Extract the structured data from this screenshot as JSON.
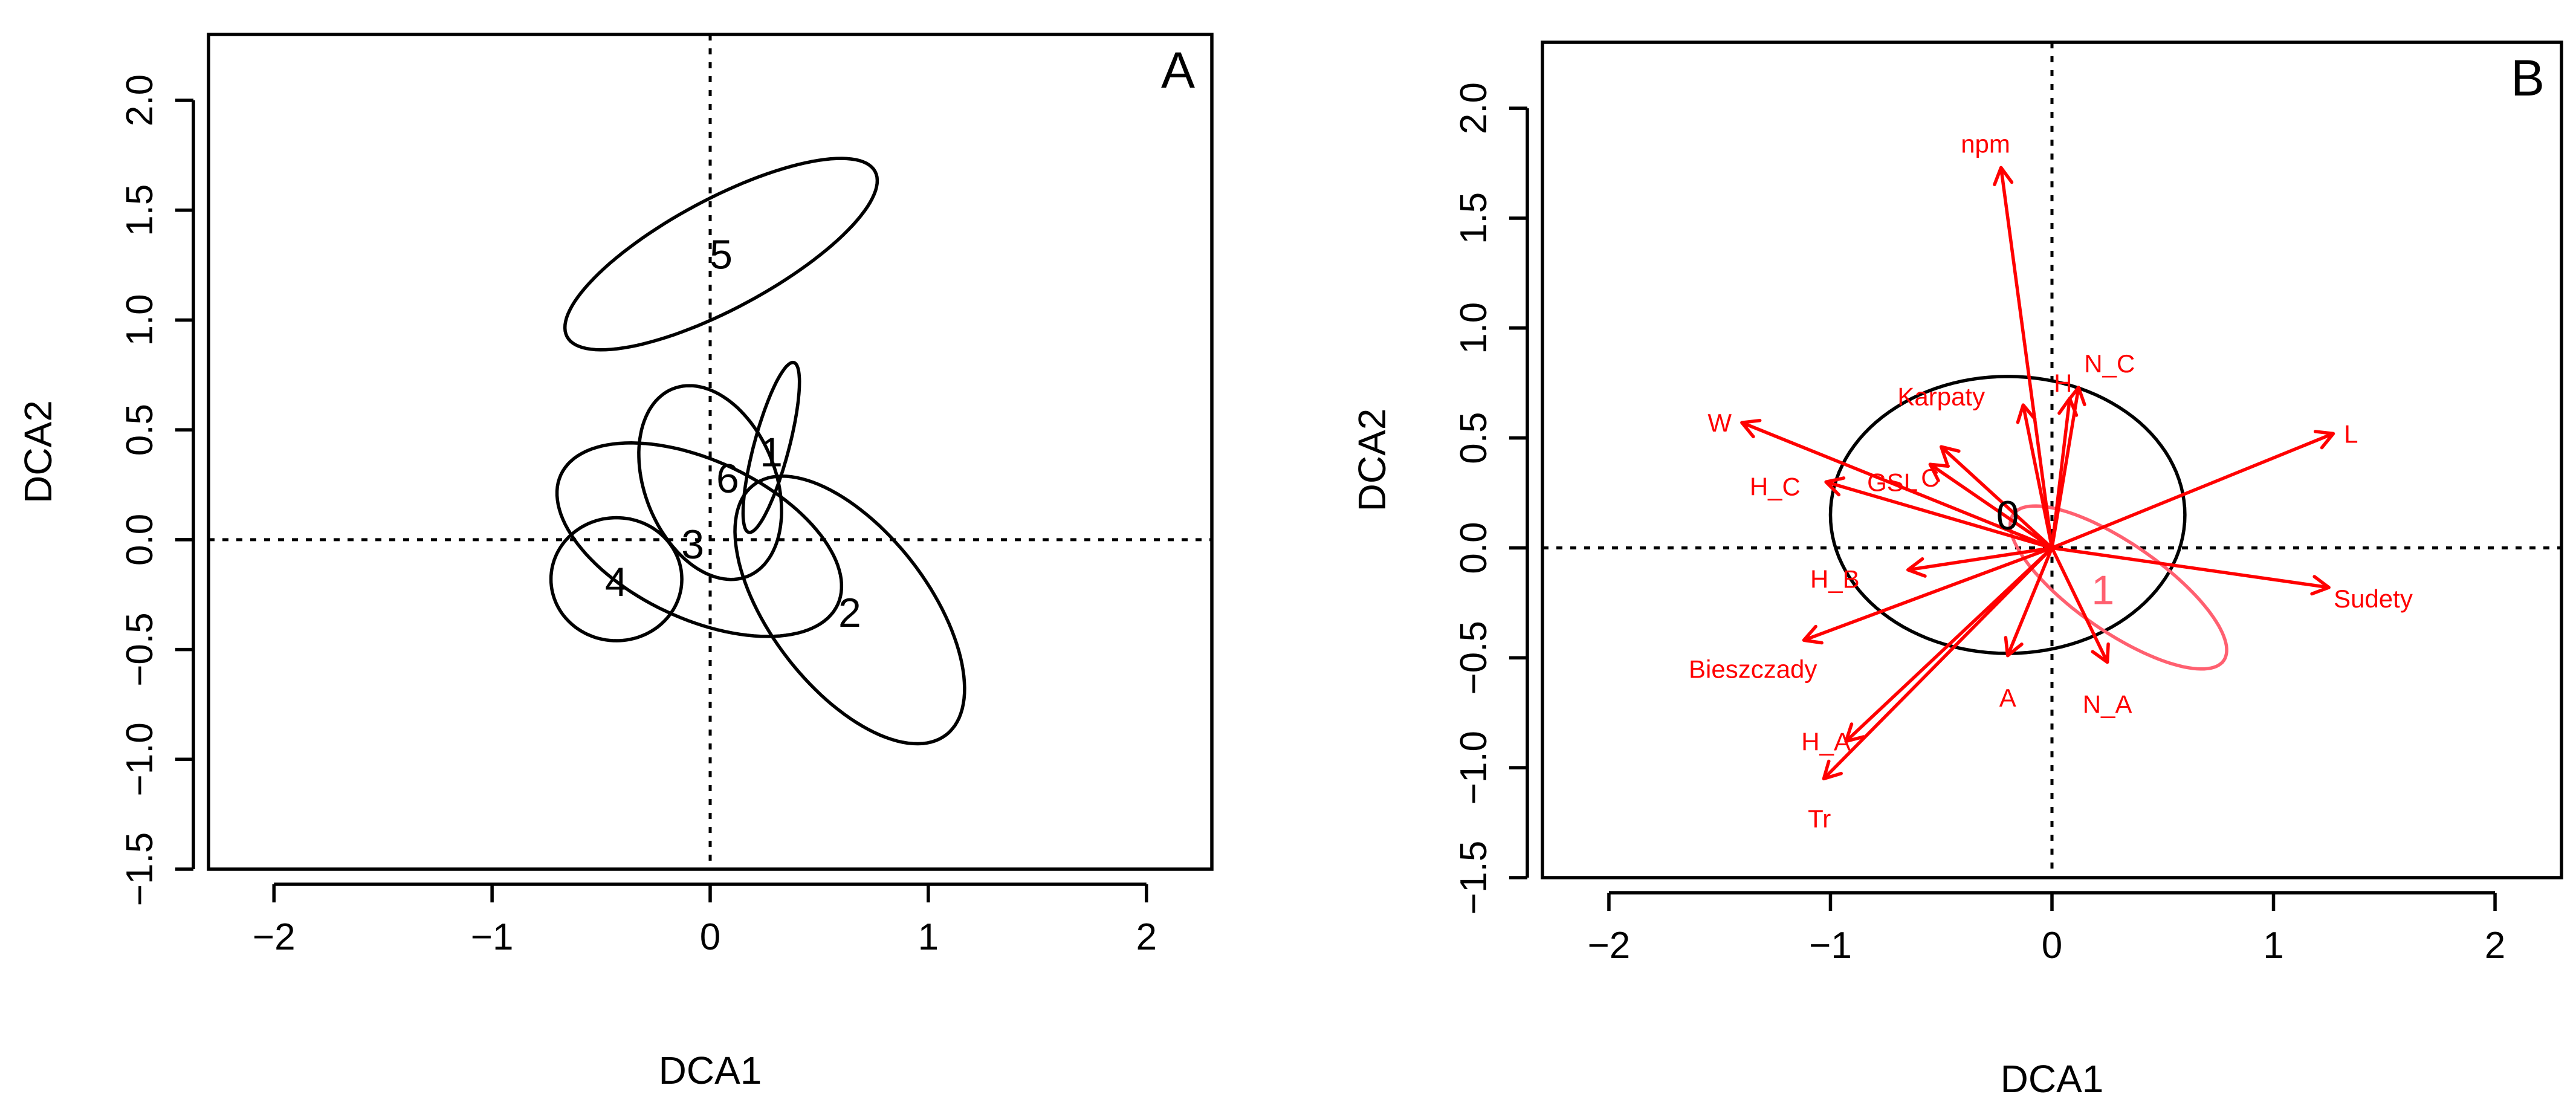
{
  "colors": {
    "axis": "#000000",
    "arrow": "#ff0000",
    "group1_ellipse": "#ff6070"
  },
  "chart_data": [
    {
      "type": "scatter",
      "panel_label": "A",
      "xlabel": "DCA1",
      "ylabel": "DCA2",
      "xlim": [
        -2.3,
        2.3
      ],
      "ylim": [
        -1.5,
        2.3
      ],
      "xticks": [
        -2,
        -1,
        0,
        1,
        2
      ],
      "yticks": [
        -1.5,
        -1.0,
        -0.5,
        0.0,
        0.5,
        1.0,
        1.5,
        2.0
      ],
      "xtick_labels": [
        "−2",
        "−1",
        "0",
        "1",
        "2"
      ],
      "ytick_labels": [
        "−1.5",
        "−1.0",
        "−0.5",
        "0.0",
        "0.5",
        "1.0",
        "1.5",
        "2.0"
      ],
      "reference_lines": {
        "x": 0,
        "y": 0,
        "style": "dotted"
      },
      "ellipses": [
        {
          "name": "5",
          "center": [
            0.05,
            1.3
          ],
          "radius_a": 0.8,
          "radius_b": 0.25,
          "angle_deg": 28,
          "color": "#000000"
        },
        {
          "name": "1",
          "center": [
            0.28,
            0.42
          ],
          "radius_a": 0.4,
          "radius_b": 0.08,
          "angle_deg": 75,
          "color": "#000000"
        },
        {
          "name": "6",
          "center": [
            0.0,
            0.26
          ],
          "radius_a": 0.46,
          "radius_b": 0.3,
          "angle_deg": -68,
          "color": "#000000"
        },
        {
          "name": "3",
          "center": [
            -0.05,
            0.0
          ],
          "radius_a": 0.7,
          "radius_b": 0.36,
          "angle_deg": -25,
          "color": "#000000"
        },
        {
          "name": "4",
          "center": [
            -0.43,
            -0.18
          ],
          "radius_a": 0.3,
          "radius_b": 0.28,
          "angle_deg": 0,
          "color": "#000000"
        },
        {
          "name": "2",
          "center": [
            0.64,
            -0.32
          ],
          "radius_a": 0.72,
          "radius_b": 0.36,
          "angle_deg": -52,
          "color": "#000000"
        }
      ],
      "group_labels": [
        {
          "text": "5",
          "x": 0.05,
          "y": 1.3
        },
        {
          "text": "1",
          "x": 0.28,
          "y": 0.4
        },
        {
          "text": "6",
          "x": 0.08,
          "y": 0.28
        },
        {
          "text": "3",
          "x": -0.08,
          "y": -0.02
        },
        {
          "text": "4",
          "x": -0.43,
          "y": -0.19
        },
        {
          "text": "2",
          "x": 0.64,
          "y": -0.33
        }
      ]
    },
    {
      "type": "scatter",
      "panel_label": "B",
      "xlabel": "DCA1",
      "ylabel": "DCA2",
      "xlim": [
        -2.3,
        2.3
      ],
      "ylim": [
        -1.5,
        2.3
      ],
      "xticks": [
        -2,
        -1,
        0,
        1,
        2
      ],
      "yticks": [
        -1.5,
        -1.0,
        -0.5,
        0.0,
        0.5,
        1.0,
        1.5,
        2.0
      ],
      "xtick_labels": [
        "−2",
        "−1",
        "0",
        "1",
        "2"
      ],
      "ytick_labels": [
        "−1.5",
        "−1.0",
        "−0.5",
        "0.0",
        "0.5",
        "1.0",
        "1.5",
        "2.0"
      ],
      "reference_lines": {
        "x": 0,
        "y": 0,
        "style": "dotted"
      },
      "ellipses": [
        {
          "name": "0",
          "center": [
            -0.2,
            0.15
          ],
          "radius_a": 0.8,
          "radius_b": 0.63,
          "angle_deg": 0,
          "color": "#000000"
        },
        {
          "name": "1",
          "center": [
            0.3,
            -0.18
          ],
          "radius_a": 0.58,
          "radius_b": 0.2,
          "angle_deg": -35,
          "color": "#ff6070"
        }
      ],
      "group_labels": [
        {
          "text": "0",
          "x": -0.2,
          "y": 0.15,
          "color": "#000000"
        },
        {
          "text": "1",
          "x": 0.23,
          "y": -0.19,
          "color": "#ff6070"
        }
      ],
      "arrows": [
        {
          "label": "npm",
          "x": -0.23,
          "y": 1.73,
          "label_x": -0.3,
          "label_y": 1.84
        },
        {
          "label": "N_C",
          "x": 0.12,
          "y": 0.73,
          "label_x": 0.26,
          "label_y": 0.84
        },
        {
          "label": "H",
          "x": 0.08,
          "y": 0.68,
          "label_x": 0.05,
          "label_y": 0.75
        },
        {
          "label": "Karpaty",
          "x": -0.13,
          "y": 0.65,
          "label_x": -0.5,
          "label_y": 0.69
        },
        {
          "label": "W",
          "x": -1.4,
          "y": 0.57,
          "label_x": -1.5,
          "label_y": 0.57
        },
        {
          "label": "L",
          "x": 1.27,
          "y": 0.52,
          "label_x": 1.35,
          "label_y": 0.52
        },
        {
          "label": "C",
          "x": -0.5,
          "y": 0.46,
          "label_x": -0.55,
          "label_y": 0.32
        },
        {
          "label": "GSL",
          "x": -0.55,
          "y": 0.38,
          "label_x": -0.72,
          "label_y": 0.3
        },
        {
          "label": "H_C",
          "x": -1.02,
          "y": 0.3,
          "label_x": -1.25,
          "label_y": 0.28
        },
        {
          "label": "H_B",
          "x": -0.65,
          "y": -0.1,
          "label_x": -0.98,
          "label_y": -0.14
        },
        {
          "label": "Sudety",
          "x": 1.25,
          "y": -0.18,
          "label_x": 1.45,
          "label_y": -0.23
        },
        {
          "label": "Bieszczady",
          "x": -1.12,
          "y": -0.42,
          "label_x": -1.35,
          "label_y": -0.55
        },
        {
          "label": "A",
          "x": -0.2,
          "y": -0.49,
          "label_x": -0.2,
          "label_y": -0.68
        },
        {
          "label": "N_A",
          "x": 0.25,
          "y": -0.52,
          "label_x": 0.25,
          "label_y": -0.71
        },
        {
          "label": "H_A",
          "x": -0.93,
          "y": -0.88,
          "label_x": -1.02,
          "label_y": -0.88
        },
        {
          "label": "Tr",
          "x": -1.03,
          "y": -1.05,
          "label_x": -1.05,
          "label_y": -1.23
        }
      ]
    }
  ]
}
